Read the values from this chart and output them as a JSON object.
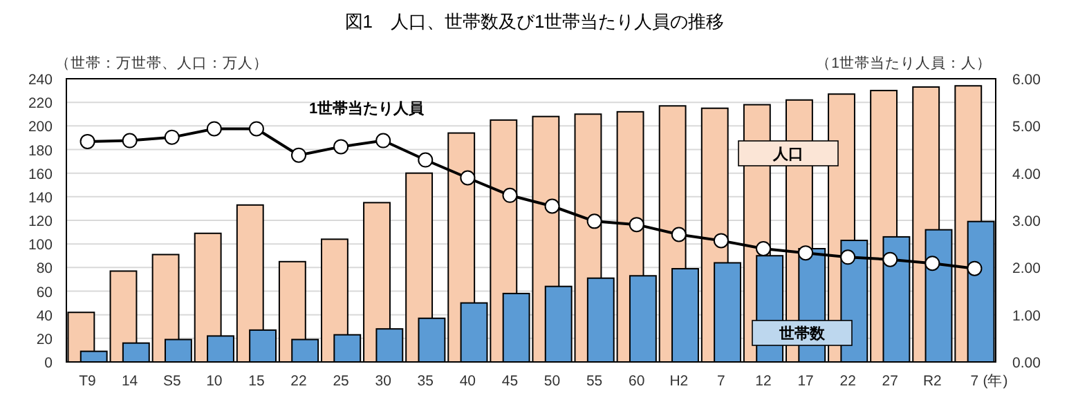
{
  "chart_data": {
    "type": "bar",
    "title": "図1　人口、世帯数及び1世帯当たり人員の推移",
    "ylabel": "（世帯：万世帯、人口：万人）",
    "y2label": "（1世帯当たり人員：人）",
    "xlabel": "(年)",
    "categories": [
      "T9",
      "14",
      "S5",
      "10",
      "15",
      "22",
      "25",
      "30",
      "35",
      "40",
      "45",
      "50",
      "55",
      "60",
      "H2",
      "7",
      "12",
      "17",
      "22",
      "27",
      "R2",
      "7"
    ],
    "series": [
      {
        "name": "人口",
        "color": "#f8cbad",
        "values": [
          42,
          77,
          91,
          109,
          133,
          85,
          104,
          135,
          160,
          194,
          205,
          208,
          210,
          212,
          217,
          215,
          218,
          222,
          227,
          230,
          233,
          234
        ]
      },
      {
        "name": "世帯数",
        "color": "#5b9bd5",
        "values": [
          9,
          16,
          19,
          22,
          27,
          19,
          23,
          28,
          37,
          50,
          58,
          64,
          71,
          73,
          79,
          84,
          90,
          96,
          103,
          106,
          112,
          119
        ]
      },
      {
        "name": "1世帯当たり人員",
        "type": "line",
        "axis": "y2",
        "color": "#000000",
        "marker": "circle",
        "values": [
          4.67,
          4.69,
          4.76,
          4.94,
          4.94,
          4.38,
          4.56,
          4.69,
          4.28,
          3.9,
          3.53,
          3.3,
          2.98,
          2.91,
          2.7,
          2.57,
          2.4,
          2.31,
          2.22,
          2.17,
          2.09,
          1.98
        ]
      }
    ],
    "ylim": [
      0,
      240
    ],
    "yticks": [
      0,
      20,
      40,
      60,
      80,
      100,
      120,
      140,
      160,
      180,
      200,
      220,
      240
    ],
    "y2lim": [
      0,
      6
    ],
    "y2ticks": [
      {
        "value": 0,
        "label": "0.00"
      },
      {
        "value": 1,
        "label": "1.00"
      },
      {
        "value": 2,
        "label": "2.00"
      },
      {
        "value": 3,
        "label": "3.00"
      },
      {
        "value": 4,
        "label": "4.00"
      },
      {
        "value": 5,
        "label": "5.00"
      },
      {
        "value": 6,
        "label": "6.00"
      }
    ],
    "grid": "y"
  }
}
